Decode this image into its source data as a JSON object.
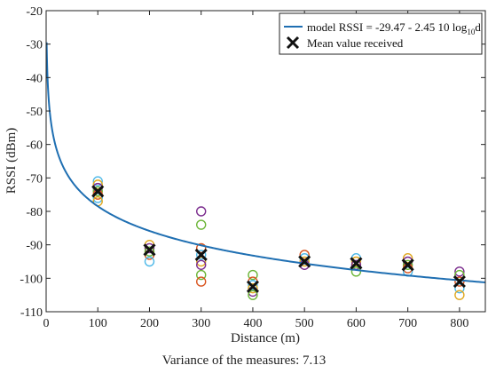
{
  "chart_data": {
    "type": "scatter",
    "xlabel": "Distance (m)",
    "ylabel": "RSSI (dBm)",
    "xlim": [
      0,
      850
    ],
    "ylim": [
      -110,
      -20
    ],
    "xticks": [
      0,
      100,
      200,
      300,
      400,
      500,
      600,
      700,
      800
    ],
    "yticks": [
      -20,
      -30,
      -40,
      -50,
      -60,
      -70,
      -80,
      -90,
      -100,
      -110
    ],
    "grid": false,
    "legend_position": "top-right",
    "model": {
      "name_main": "model RSSI = -29.47 - 2.45 10 log",
      "name_sub": "10",
      "name_end": "d",
      "a": -29.47,
      "b": -24.5,
      "color": "#1f6fb2"
    },
    "mean_series": {
      "name": "Mean value received",
      "color": "#111111",
      "x": [
        100,
        200,
        300,
        400,
        500,
        600,
        700,
        800
      ],
      "y": [
        -74,
        -91.5,
        -93,
        -102.5,
        -95,
        -95.5,
        -96,
        -101
      ]
    },
    "measurement_colors": [
      "#4db8e8",
      "#e0a820",
      "#7b2d8e",
      "#6bb536",
      "#d9541e"
    ],
    "measurements": [
      {
        "x": 100,
        "y": [
          -71,
          -72,
          -73,
          -74,
          -75,
          -76,
          -77
        ]
      },
      {
        "x": 200,
        "y": [
          -90,
          -91,
          -92,
          -93,
          -95
        ]
      },
      {
        "x": 300,
        "y": [
          -80,
          -84,
          -91,
          -93,
          -95,
          -96,
          -99,
          -101
        ]
      },
      {
        "x": 400,
        "y": [
          -99,
          -101,
          -102,
          -103,
          -104,
          -105
        ]
      },
      {
        "x": 500,
        "y": [
          -93,
          -94,
          -95,
          -96
        ]
      },
      {
        "x": 600,
        "y": [
          -94,
          -95,
          -96,
          -98
        ]
      },
      {
        "x": 700,
        "y": [
          -94,
          -95,
          -96,
          -97,
          -98
        ]
      },
      {
        "x": 800,
        "y": [
          -98,
          -99,
          -101,
          -103,
          -105
        ]
      }
    ]
  },
  "footnote": "Variance of the measures: 7.13"
}
